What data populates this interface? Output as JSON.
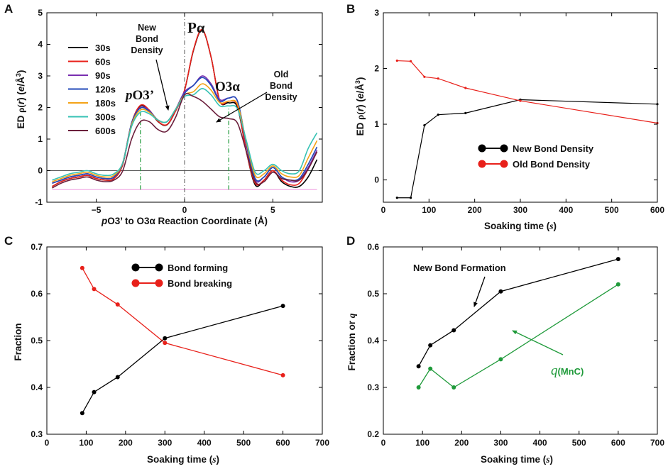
{
  "chart_data": [
    {
      "id": "A",
      "type": "line",
      "panel_label": "A",
      "xlabel": "pO3’ to O3α Reaction Coordinate (Å)",
      "ylabel": "ED ρ(r) (e/Å³)",
      "xlim": [
        -7.8,
        7.8
      ],
      "ylim": [
        -1,
        5
      ],
      "xticks": [
        -5,
        0,
        5
      ],
      "yticks": [
        -1,
        0,
        1,
        2,
        3,
        4,
        5
      ],
      "xtick_labels": [
        "−5",
        "0",
        "5"
      ],
      "yticks_labels": [
        "-1",
        "0",
        "1",
        "2",
        "3",
        "4",
        "5"
      ],
      "x": [
        -7.5,
        -7,
        -6.5,
        -6,
        -5.5,
        -5,
        -4.5,
        -4,
        -3.5,
        -3,
        -2.5,
        -2,
        -1.5,
        -1,
        -0.5,
        0,
        0.5,
        1,
        1.5,
        2,
        2.5,
        3,
        3.5,
        4,
        4.5,
        5,
        5.5,
        6,
        6.5,
        7,
        7.5
      ],
      "series": [
        {
          "name": "30s",
          "color": "#000000",
          "values": [
            -0.5,
            -0.35,
            -0.25,
            -0.2,
            -0.15,
            -0.25,
            -0.3,
            -0.25,
            0.2,
            1.5,
            2.05,
            1.9,
            1.55,
            1.45,
            1.9,
            2.55,
            3.8,
            4.45,
            3.6,
            2.2,
            2.15,
            2.0,
            0.6,
            -0.45,
            -0.3,
            0.0,
            -0.35,
            -0.5,
            -0.5,
            -0.2,
            0.35
          ]
        },
        {
          "name": "60s",
          "color": "#e8201a",
          "values": [
            -0.5,
            -0.35,
            -0.25,
            -0.2,
            -0.15,
            -0.25,
            -0.3,
            -0.25,
            0.2,
            1.5,
            2.07,
            1.92,
            1.56,
            1.46,
            1.9,
            2.55,
            3.82,
            4.47,
            3.6,
            2.2,
            2.2,
            2.05,
            0.6,
            -0.4,
            -0.3,
            0.0,
            -0.3,
            -0.45,
            -0.4,
            0.05,
            0.6
          ]
        },
        {
          "name": "90s",
          "color": "#7a2fb0",
          "values": [
            -0.4,
            -0.3,
            -0.2,
            -0.15,
            -0.1,
            -0.2,
            -0.25,
            -0.2,
            0.25,
            1.5,
            2.0,
            1.9,
            1.6,
            1.55,
            1.95,
            2.5,
            2.7,
            3.0,
            2.75,
            2.25,
            2.3,
            2.2,
            0.8,
            -0.3,
            -0.2,
            0.1,
            -0.2,
            -0.35,
            -0.3,
            0.1,
            0.65
          ]
        },
        {
          "name": "120s",
          "color": "#2148b8",
          "values": [
            -0.4,
            -0.3,
            -0.2,
            -0.15,
            -0.1,
            -0.2,
            -0.25,
            -0.2,
            0.25,
            1.5,
            1.98,
            1.88,
            1.6,
            1.55,
            1.95,
            2.45,
            2.7,
            2.95,
            2.7,
            2.2,
            2.3,
            2.2,
            0.85,
            -0.25,
            -0.2,
            0.1,
            -0.2,
            -0.3,
            -0.25,
            0.2,
            0.75
          ]
        },
        {
          "name": "180s",
          "color": "#f4a317",
          "values": [
            -0.35,
            -0.25,
            -0.15,
            -0.1,
            -0.05,
            -0.15,
            -0.2,
            -0.15,
            0.25,
            1.45,
            1.92,
            1.85,
            1.6,
            1.55,
            1.95,
            2.4,
            2.5,
            2.75,
            2.55,
            2.15,
            2.2,
            2.1,
            0.9,
            -0.15,
            -0.1,
            0.15,
            -0.1,
            -0.2,
            -0.15,
            0.4,
            0.95
          ]
        },
        {
          "name": "300s",
          "color": "#36c2b4",
          "values": [
            -0.3,
            -0.2,
            -0.1,
            -0.05,
            0.0,
            -0.1,
            -0.15,
            -0.1,
            0.25,
            1.4,
            1.85,
            1.8,
            1.6,
            1.55,
            1.95,
            2.35,
            2.4,
            2.6,
            2.4,
            2.05,
            2.05,
            1.95,
            0.95,
            -0.05,
            0.0,
            0.2,
            0.0,
            -0.1,
            0.0,
            0.7,
            1.2
          ]
        },
        {
          "name": "600s",
          "color": "#6b1f3c",
          "values": [
            -0.55,
            -0.4,
            -0.3,
            -0.25,
            -0.2,
            -0.3,
            -0.35,
            -0.3,
            0.0,
            1.0,
            1.55,
            1.55,
            1.3,
            1.25,
            1.7,
            2.4,
            2.35,
            2.2,
            1.95,
            1.7,
            1.65,
            1.5,
            0.6,
            -0.35,
            -0.35,
            -0.05,
            -0.25,
            -0.3,
            -0.3,
            0.05,
            0.6
          ]
        }
      ],
      "reference_lines": {
        "zero_y": 0,
        "baseline_y": -0.6,
        "vertical_center_x": 0,
        "dashdot_x": [
          -2.5,
          2.5
        ]
      },
      "annotations": {
        "new_bond": [
          "New",
          "Bond",
          "Density"
        ],
        "old_bond": [
          "Old",
          "Bond",
          "Density"
        ],
        "p_alpha": "Pα",
        "o3_alpha": "O3α",
        "p_o3_prime": "pO3’"
      }
    },
    {
      "id": "B",
      "type": "line",
      "panel_label": "B",
      "xlabel": "Soaking time (s)",
      "ylabel": "ED ρ(r) (e/Å³)",
      "xlim": [
        0,
        600
      ],
      "ylim": [
        -0.4,
        3
      ],
      "xticks": [
        0,
        100,
        200,
        300,
        400,
        500,
        600
      ],
      "yticks": [
        0,
        1,
        2,
        3
      ],
      "x": [
        30,
        60,
        90,
        120,
        180,
        300,
        600
      ],
      "series": [
        {
          "name": "New Bond Density",
          "color": "#000000",
          "values": [
            -0.32,
            -0.32,
            0.98,
            1.17,
            1.2,
            1.44,
            1.36
          ]
        },
        {
          "name": "Old Bond Density",
          "color": "#e8201a",
          "values": [
            2.14,
            2.13,
            1.85,
            1.82,
            1.65,
            1.42,
            1.02
          ]
        }
      ]
    },
    {
      "id": "C",
      "type": "line",
      "panel_label": "C",
      "xlabel": "Soaking time (s)",
      "ylabel": "Fraction",
      "xlim": [
        0,
        700
      ],
      "ylim": [
        0.3,
        0.7
      ],
      "xticks": [
        0,
        100,
        200,
        300,
        400,
        500,
        600,
        700
      ],
      "yticks": [
        0.3,
        0.4,
        0.5,
        0.6,
        0.7
      ],
      "x": [
        90,
        120,
        180,
        300,
        600
      ],
      "series": [
        {
          "name": "Bond forming",
          "color": "#000000",
          "values": [
            0.345,
            0.39,
            0.422,
            0.505,
            0.574
          ]
        },
        {
          "name": "Bond breaking",
          "color": "#e8201a",
          "values": [
            0.655,
            0.61,
            0.577,
            0.495,
            0.426
          ]
        }
      ]
    },
    {
      "id": "D",
      "type": "line",
      "panel_label": "D",
      "xlabel": "Soaking time (s)",
      "ylabel": "Fraction or q",
      "xlim": [
        0,
        700
      ],
      "ylim": [
        0.2,
        0.6
      ],
      "xticks": [
        0,
        100,
        200,
        300,
        400,
        500,
        600,
        700
      ],
      "yticks": [
        0.2,
        0.3,
        0.4,
        0.5,
        0.6
      ],
      "x": [
        90,
        120,
        180,
        300,
        600
      ],
      "series": [
        {
          "name": "New Bond Formation",
          "color": "#000000",
          "values": [
            0.345,
            0.39,
            0.422,
            0.505,
            0.574
          ]
        },
        {
          "name": "q(MnC)",
          "color": "#1f9a3a",
          "values": [
            0.3,
            0.34,
            0.3,
            0.36,
            0.52
          ]
        }
      ]
    }
  ],
  "labels": {
    "ed": "ED ",
    "rho": "ρ(",
    "r": "r",
    "close": ") (",
    "unit_e": "e",
    "unit_rest": "/Å",
    "unit_sup": "3",
    "close2": ")",
    "soaking": "Soaking time (",
    "s": "s",
    "paren": ")",
    "a_x_p": "p",
    "a_x_rest": "O3’ to O3α Reaction Coordinate (Å)",
    "fraction": "Fraction",
    "fraction_or": "Fraction or ",
    "q": "q",
    "p_italic": "p",
    "o3_prime": "O3’",
    "q_mnc_q": "q",
    "q_mnc_rest": "(MnC)"
  }
}
